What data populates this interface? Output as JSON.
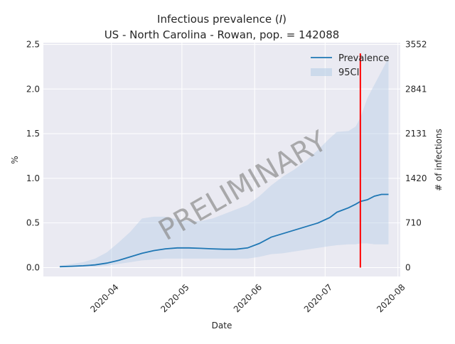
{
  "chart_data": {
    "type": "line",
    "title_line1": "Infectious prevalence (",
    "title_var": "I",
    "title_line1_end": ")",
    "title_line2": "US - North Carolina - Rowan, pop. = 142088",
    "xlabel": "Date",
    "ylabel": "%",
    "ylabel_right": "# of infections",
    "watermark": "PRELIMINARY",
    "xlim": [
      "2020-03-03",
      "2020-08-02"
    ],
    "ylim": [
      -0.1,
      2.52
    ],
    "x_ticks": [
      "2020-04-01",
      "2020-05-01",
      "2020-06-01",
      "2020-07-01",
      "2020-08-01"
    ],
    "x_tick_labels": [
      "2020-04",
      "2020-05",
      "2020-06",
      "2020-07",
      "2020-08"
    ],
    "y_ticks": [
      0.0,
      0.5,
      1.0,
      1.5,
      2.0,
      2.5
    ],
    "y_tick_labels": [
      "0.0",
      "0.5",
      "1.0",
      "1.5",
      "2.0",
      "2.5"
    ],
    "y_right_ticks": [
      0,
      710,
      1420,
      2131,
      2841,
      3552
    ],
    "population": 142088,
    "grid": true,
    "legend_position": "top-right",
    "legend": [
      {
        "name": "Prevalence",
        "kind": "line"
      },
      {
        "name": "95CI",
        "kind": "band"
      }
    ],
    "colors": {
      "line": "#1f77b4",
      "band": "#b8cfe6",
      "vline": "#ff0000",
      "watermark": "#8c8c8c",
      "plot_bg": "#eaeaf2",
      "grid": "#ffffff"
    },
    "vline_date": "2020-07-16",
    "series": [
      {
        "name": "Prevalence",
        "x": [
          "2020-03-10",
          "2020-03-15",
          "2020-03-20",
          "2020-03-25",
          "2020-03-30",
          "2020-04-04",
          "2020-04-09",
          "2020-04-14",
          "2020-04-19",
          "2020-04-24",
          "2020-04-29",
          "2020-05-04",
          "2020-05-09",
          "2020-05-14",
          "2020-05-19",
          "2020-05-24",
          "2020-05-29",
          "2020-06-03",
          "2020-06-08",
          "2020-06-13",
          "2020-06-18",
          "2020-06-23",
          "2020-06-28",
          "2020-07-03",
          "2020-07-06",
          "2020-07-11",
          "2020-07-14",
          "2020-07-16",
          "2020-07-19",
          "2020-07-22",
          "2020-07-25",
          "2020-07-28"
        ],
        "values": [
          0.01,
          0.015,
          0.02,
          0.03,
          0.05,
          0.08,
          0.12,
          0.16,
          0.19,
          0.21,
          0.22,
          0.22,
          0.215,
          0.21,
          0.205,
          0.205,
          0.22,
          0.27,
          0.34,
          0.38,
          0.42,
          0.46,
          0.5,
          0.56,
          0.62,
          0.67,
          0.71,
          0.74,
          0.76,
          0.8,
          0.82,
          0.82
        ]
      },
      {
        "name": "95CI",
        "x": [
          "2020-03-10",
          "2020-03-20",
          "2020-03-25",
          "2020-03-30",
          "2020-04-04",
          "2020-04-09",
          "2020-04-14",
          "2020-04-19",
          "2020-04-24",
          "2020-04-29",
          "2020-05-04",
          "2020-05-09",
          "2020-05-14",
          "2020-05-19",
          "2020-05-24",
          "2020-05-29",
          "2020-06-03",
          "2020-06-08",
          "2020-06-13",
          "2020-06-18",
          "2020-06-23",
          "2020-06-28",
          "2020-07-03",
          "2020-07-06",
          "2020-07-11",
          "2020-07-14",
          "2020-07-16",
          "2020-07-19",
          "2020-07-22",
          "2020-07-25",
          "2020-07-28"
        ],
        "lower": [
          0.0,
          0.005,
          0.01,
          0.02,
          0.04,
          0.06,
          0.08,
          0.09,
          0.1,
          0.1,
          0.1,
          0.1,
          0.1,
          0.1,
          0.1,
          0.1,
          0.12,
          0.15,
          0.16,
          0.18,
          0.2,
          0.22,
          0.24,
          0.25,
          0.26,
          0.26,
          0.27,
          0.27,
          0.26,
          0.26,
          0.26
        ],
        "upper": [
          0.02,
          0.06,
          0.1,
          0.17,
          0.28,
          0.4,
          0.55,
          0.57,
          0.57,
          0.54,
          0.52,
          0.52,
          0.55,
          0.6,
          0.65,
          0.7,
          0.8,
          0.92,
          1.02,
          1.1,
          1.2,
          1.32,
          1.45,
          1.52,
          1.53,
          1.58,
          1.68,
          1.9,
          2.05,
          2.2,
          2.35
        ]
      }
    ]
  }
}
